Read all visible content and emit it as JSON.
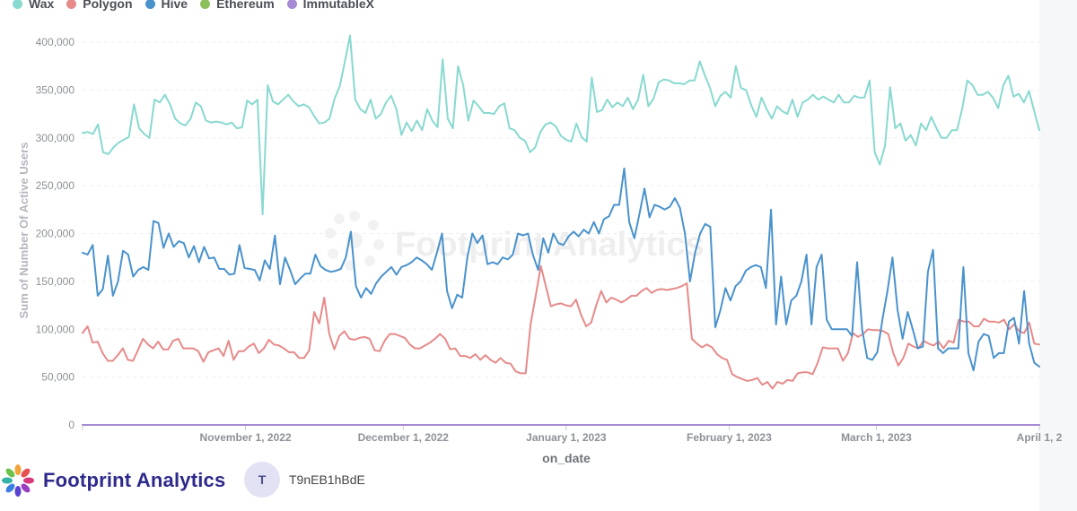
{
  "footer": {
    "brand": "Footprint Analytics",
    "user_initial": "T",
    "user_name": "T9nEB1hBdE"
  },
  "watermark": "Footprint Analytics",
  "chart_data": {
    "type": "line",
    "xlabel": "on_date",
    "ylabel": "Sum of Number Of Active Users",
    "ylim": [
      0,
      400000
    ],
    "yticks": [
      0,
      50000,
      100000,
      150000,
      200000,
      250000,
      300000,
      350000,
      400000
    ],
    "ytick_labels": [
      "0",
      "50,000",
      "100,000",
      "150,000",
      "200,000",
      "250,000",
      "300,000",
      "350,000",
      "400,000"
    ],
    "x_start": "2022-10-01",
    "x_end": "2023-04-01",
    "xticks": [
      "2022-11-01",
      "2022-12-01",
      "2023-01-01",
      "2023-02-01",
      "2023-03-01",
      "2023-04-01"
    ],
    "xtick_labels": [
      "November 1, 2022",
      "December 1, 2022",
      "January 1, 2023",
      "February 1, 2023",
      "March 1, 2023",
      "April 1, 2"
    ],
    "grid": true,
    "legend_position": "top-left",
    "series": [
      {
        "name": "Wax",
        "color": "#88d9d0",
        "values": [
          305000,
          306000,
          304000,
          314000,
          285000,
          283000,
          290000,
          295000,
          298000,
          301000,
          335000,
          310000,
          304000,
          300000,
          340000,
          337000,
          345000,
          335000,
          320000,
          315000,
          313000,
          320000,
          337000,
          333000,
          318000,
          316000,
          317000,
          316000,
          314000,
          316000,
          310000,
          311000,
          339000,
          335000,
          340000,
          220000,
          355000,
          338000,
          335000,
          340000,
          345000,
          338000,
          333000,
          335000,
          332000,
          323000,
          315000,
          316000,
          320000,
          341000,
          354000,
          380000,
          407000,
          340000,
          330000,
          326000,
          340000,
          320000,
          325000,
          337000,
          344000,
          330000,
          303000,
          316000,
          307000,
          318000,
          308000,
          330000,
          318000,
          311000,
          382000,
          320000,
          310000,
          375000,
          355000,
          318000,
          339000,
          333000,
          326000,
          326000,
          325000,
          333000,
          336000,
          310000,
          308000,
          300000,
          297000,
          285000,
          290000,
          306000,
          314000,
          316000,
          312000,
          302000,
          298000,
          296000,
          315000,
          301000,
          296000,
          363000,
          327000,
          329000,
          340000,
          332000,
          337000,
          333000,
          342000,
          330000,
          340000,
          366000,
          333000,
          341000,
          358000,
          361000,
          360000,
          357000,
          357000,
          356000,
          360000,
          360000,
          380000,
          365000,
          352000,
          333000,
          344000,
          348000,
          342000,
          375000,
          352000,
          350000,
          334000,
          322000,
          342000,
          330000,
          320000,
          333000,
          328000,
          325000,
          340000,
          322000,
          337000,
          340000,
          345000,
          340000,
          343000,
          340000,
          337000,
          345000,
          337000,
          337000,
          344000,
          342000,
          342000,
          360000,
          285000,
          272000,
          292000,
          353000,
          310000,
          315000,
          297000,
          303000,
          292000,
          315000,
          308000,
          322000,
          310000,
          300000,
          300000,
          308000,
          308000,
          330000,
          360000,
          355000,
          345000,
          345000,
          348000,
          342000,
          331000,
          355000,
          365000,
          343000,
          346000,
          337000,
          349000,
          328000,
          308000
        ]
      },
      {
        "name": "Polygon",
        "color": "#e68a8a",
        "values": [
          96000,
          103000,
          86000,
          87000,
          75000,
          67000,
          67000,
          73000,
          80000,
          68000,
          67000,
          78000,
          90000,
          84000,
          80000,
          87000,
          79000,
          79000,
          88000,
          90000,
          80000,
          80000,
          80000,
          77000,
          66000,
          76000,
          78000,
          80000,
          72000,
          88000,
          68000,
          77000,
          77000,
          82000,
          85000,
          75000,
          80000,
          89000,
          84000,
          83000,
          80000,
          76000,
          76000,
          70000,
          70000,
          78000,
          118000,
          106000,
          133000,
          95000,
          79000,
          93000,
          98000,
          90000,
          89000,
          91000,
          92000,
          90000,
          78000,
          77000,
          88000,
          95000,
          95000,
          93000,
          91000,
          84000,
          80000,
          80000,
          83000,
          86000,
          90000,
          95000,
          90000,
          79000,
          80000,
          72000,
          72000,
          70000,
          74000,
          68000,
          73000,
          68000,
          65000,
          70000,
          65000,
          64000,
          56000,
          54000,
          54000,
          106000,
          135000,
          166000,
          145000,
          124000,
          126000,
          127000,
          125000,
          124000,
          131000,
          115000,
          103000,
          107000,
          125000,
          140000,
          128000,
          133000,
          131000,
          128000,
          131000,
          135000,
          135000,
          140000,
          143000,
          138000,
          141000,
          142000,
          141000,
          142000,
          143000,
          145000,
          148000,
          90000,
          85000,
          81000,
          84000,
          81000,
          74000,
          70000,
          68000,
          53000,
          50000,
          48000,
          46000,
          47000,
          49000,
          42000,
          45000,
          38000,
          45000,
          43000,
          47000,
          46000,
          54000,
          55000,
          55000,
          53000,
          65000,
          81000,
          80000,
          80000,
          80000,
          67000,
          75000,
          96000,
          92000,
          95000,
          100000,
          99000,
          99000,
          98000,
          95000,
          75000,
          62000,
          70000,
          85000,
          82000,
          80000,
          88000,
          85000,
          83000,
          87000,
          80000,
          88000,
          86000,
          110000,
          108000,
          108000,
          103000,
          103000,
          111000,
          108000,
          108000,
          107000,
          110000,
          100000,
          105000,
          98000,
          96000,
          107000,
          85000,
          84000
        ]
      },
      {
        "name": "Hive",
        "color": "#4a92cc",
        "values": [
          180000,
          178000,
          188000,
          135000,
          142000,
          177000,
          135000,
          150000,
          182000,
          178000,
          155000,
          162000,
          165000,
          162000,
          213000,
          211000,
          185000,
          200000,
          186000,
          192000,
          190000,
          175000,
          187000,
          170000,
          186000,
          174000,
          175000,
          163000,
          163000,
          157000,
          158000,
          188000,
          164000,
          163000,
          162000,
          151000,
          172000,
          163000,
          198000,
          147000,
          175000,
          162000,
          147000,
          153000,
          158000,
          158000,
          178000,
          166000,
          162000,
          160000,
          161000,
          163000,
          175000,
          202000,
          145000,
          133000,
          143000,
          137000,
          148000,
          155000,
          160000,
          165000,
          157000,
          165000,
          167000,
          170000,
          175000,
          172000,
          168000,
          162000,
          180000,
          200000,
          140000,
          122000,
          136000,
          133000,
          175000,
          200000,
          190000,
          198000,
          168000,
          170000,
          168000,
          175000,
          173000,
          178000,
          200000,
          198000,
          200000,
          177000,
          162000,
          195000,
          180000,
          200000,
          190000,
          188000,
          197000,
          202000,
          197000,
          204000,
          200000,
          212000,
          200000,
          215000,
          218000,
          230000,
          230000,
          268000,
          212000,
          195000,
          220000,
          247000,
          217000,
          230000,
          228000,
          225000,
          228000,
          237000,
          227000,
          200000,
          150000,
          180000,
          200000,
          210000,
          207000,
          102000,
          120000,
          143000,
          130000,
          145000,
          150000,
          161000,
          165000,
          167000,
          165000,
          143000,
          225000,
          105000,
          155000,
          105000,
          130000,
          135000,
          150000,
          178000,
          105000,
          165000,
          178000,
          110000,
          100000,
          100000,
          100000,
          100000,
          93000,
          170000,
          100000,
          70000,
          68000,
          76000,
          110000,
          140000,
          175000,
          120000,
          90000,
          118000,
          100000,
          80000,
          82000,
          160000,
          183000,
          80000,
          75000,
          80000,
          80000,
          80000,
          165000,
          75000,
          57000,
          87000,
          95000,
          93000,
          70000,
          75000,
          75000,
          108000,
          112000,
          85000,
          140000,
          85000,
          65000,
          61000
        ]
      },
      {
        "name": "Ethereum",
        "color": "#8dbf5a",
        "values": [
          0,
          0,
          0,
          0,
          0,
          0,
          0,
          0,
          0,
          0,
          0,
          0,
          0,
          0,
          0,
          0,
          0,
          0,
          0,
          0,
          0,
          0,
          0,
          0,
          0,
          0,
          0,
          0,
          0,
          0,
          0,
          0,
          0,
          0,
          0,
          0,
          0,
          0,
          0,
          0,
          0,
          0,
          0,
          0,
          0,
          0,
          0,
          0,
          0,
          0,
          0,
          0,
          0,
          0,
          0,
          0,
          0,
          0,
          0,
          0,
          0,
          0,
          0,
          0,
          0,
          0,
          0,
          0,
          0,
          0,
          0,
          0,
          0,
          0,
          0,
          0,
          0,
          0,
          0,
          0,
          0,
          0,
          0,
          0,
          0,
          0,
          0,
          0,
          0,
          0,
          0,
          0,
          0,
          0,
          0,
          0,
          0,
          0,
          0,
          0,
          0,
          0,
          0,
          0,
          0,
          0,
          0,
          0,
          0,
          0,
          0,
          0,
          0,
          0,
          0,
          0,
          0,
          0,
          0,
          0,
          0,
          0,
          0,
          0,
          0,
          0,
          0,
          0,
          0,
          0,
          0,
          0,
          0,
          0,
          0,
          0,
          0,
          0,
          0,
          0,
          0,
          0,
          0,
          0,
          0,
          0,
          0,
          0,
          0,
          0,
          0,
          0,
          0,
          0,
          0,
          0,
          0,
          0,
          0,
          0,
          0,
          0,
          0,
          0,
          0,
          0,
          0,
          0,
          0,
          0,
          0,
          0,
          0,
          0,
          0,
          0,
          0,
          0,
          0,
          0,
          0,
          0,
          0,
          0,
          0,
          0,
          0,
          0,
          0,
          0,
          0,
          0,
          0,
          0,
          0,
          0,
          0,
          0
        ]
      },
      {
        "name": "ImmutableX",
        "color": "#a68ad6",
        "values": [
          0,
          0,
          0,
          0,
          0,
          0,
          0,
          0,
          0,
          0,
          0,
          0,
          0,
          0,
          0,
          0,
          0,
          0,
          0,
          0,
          0,
          0,
          0,
          0,
          0,
          0,
          0,
          0,
          0,
          0,
          0,
          0,
          0,
          0,
          0,
          0,
          0,
          0,
          0,
          0,
          0,
          0,
          0,
          0,
          0,
          0,
          0,
          0,
          0,
          0,
          0,
          0,
          0,
          0,
          0,
          0,
          0,
          0,
          0,
          0,
          0,
          0,
          0,
          0,
          0,
          0,
          0,
          0,
          0,
          0,
          0,
          0,
          0,
          0,
          0,
          0,
          0,
          0,
          0,
          0,
          0,
          0,
          0,
          0,
          0,
          0,
          0,
          0,
          0,
          0,
          0,
          0,
          0,
          0,
          0,
          0,
          0,
          0,
          0,
          0,
          0,
          0,
          0,
          0,
          0,
          0,
          0,
          0,
          0,
          0,
          0,
          0,
          0,
          0,
          0,
          0,
          0,
          0,
          0,
          0,
          0,
          0,
          0,
          0,
          0,
          0,
          0,
          0,
          0,
          0,
          0,
          0,
          0,
          0,
          0,
          0,
          0,
          0,
          0,
          0,
          0,
          0,
          0,
          0,
          0,
          0,
          0,
          0,
          0,
          0,
          0,
          0,
          0,
          0,
          0,
          0,
          0,
          0,
          0,
          0,
          0,
          0,
          0,
          0,
          0,
          0,
          0,
          0,
          0,
          0,
          0,
          0,
          0,
          0,
          0,
          0,
          0,
          0,
          0,
          0,
          0,
          0,
          0,
          0,
          0,
          0,
          0,
          0,
          0,
          0,
          0,
          0,
          0,
          0,
          0,
          0,
          0,
          0
        ]
      }
    ]
  }
}
